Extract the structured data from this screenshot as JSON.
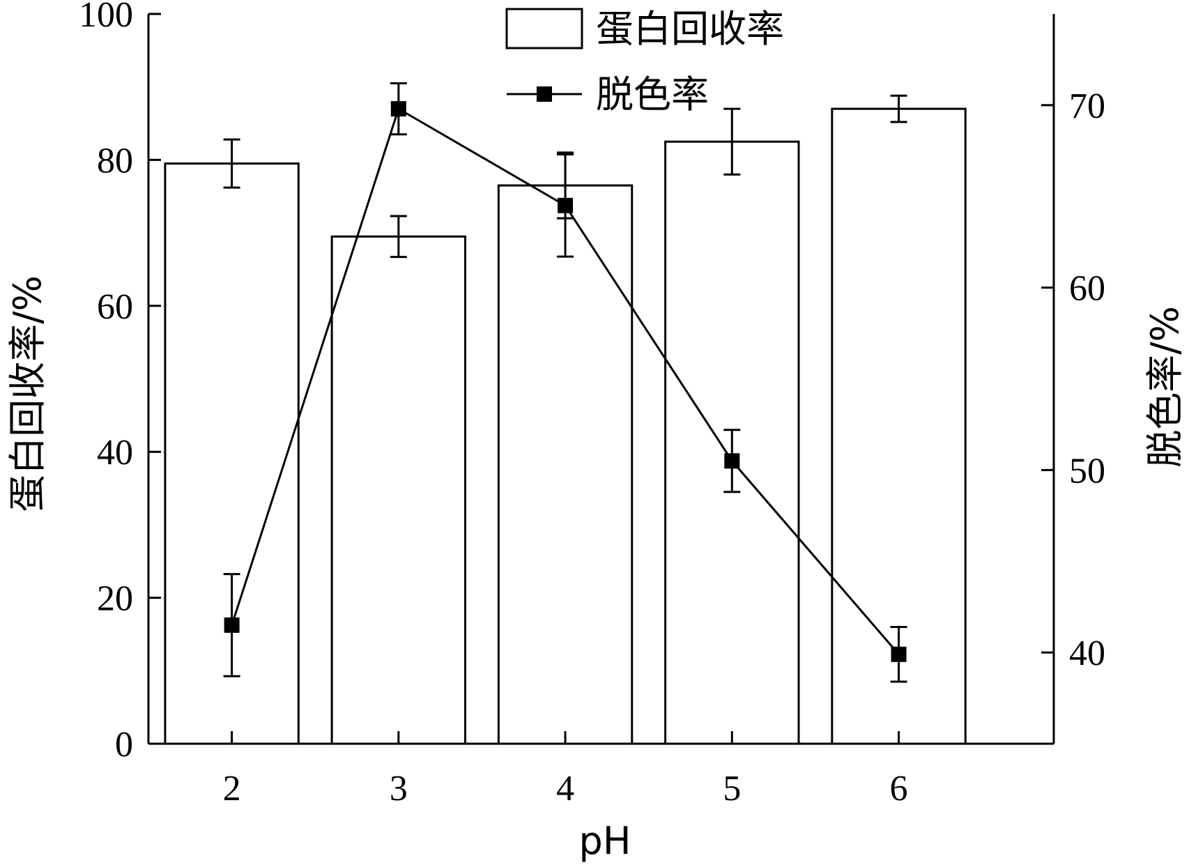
{
  "chart_data": {
    "type": "bar",
    "x": [
      2,
      3,
      4,
      5,
      6
    ],
    "xlabel": "pH",
    "x_ticks": [
      "2",
      "3",
      "4",
      "5",
      "6"
    ],
    "y_left": {
      "label": "蛋白回收率/%",
      "range": [
        0,
        100
      ],
      "ticks": [
        "0",
        "20",
        "40",
        "60",
        "80",
        "100"
      ]
    },
    "y_right": {
      "label": "脱色率/%",
      "range": [
        35,
        75
      ],
      "ticks": [
        "40",
        "50",
        "60",
        "70"
      ]
    },
    "series": [
      {
        "name": "蛋白回收率",
        "type": "bar",
        "axis": "left",
        "values": [
          79.5,
          69.5,
          76.5,
          82.5,
          87
        ],
        "errors": [
          3.3,
          2.8,
          4.5,
          4.5,
          1.8
        ]
      },
      {
        "name": "脱色率",
        "type": "line",
        "axis": "right",
        "marker": "square",
        "values": [
          41.5,
          69.8,
          64.5,
          50.5,
          39.9
        ],
        "errors": [
          2.8,
          1.4,
          2.8,
          1.7,
          1.5
        ]
      }
    ],
    "legend": "top-center",
    "grid": false
  }
}
